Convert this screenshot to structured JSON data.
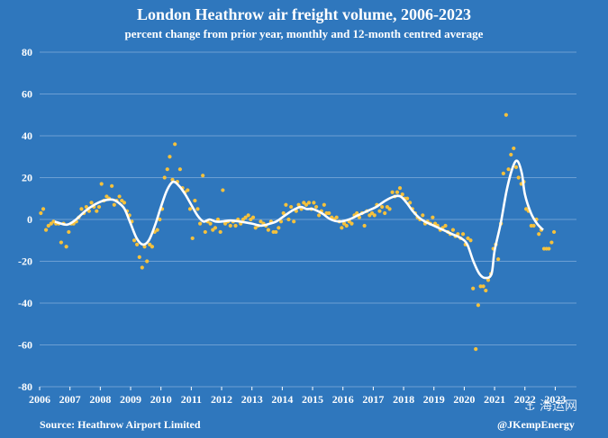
{
  "chart_data": {
    "type": "scatter",
    "title": "London Heathrow air freight volume, 2006-2023",
    "subtitle": "percent change from prior year, monthly and 12-month centred average",
    "xlabel": "",
    "ylabel": "",
    "xlim": [
      2006,
      2023.7
    ],
    "ylim": [
      -80,
      80
    ],
    "yticks": [
      "80",
      "60",
      "40",
      "20",
      "0",
      "-20",
      "-40",
      "-60",
      "-80"
    ],
    "xticks": [
      "2006",
      "2007",
      "2008",
      "2009",
      "2010",
      "2011",
      "2012",
      "2013",
      "2014",
      "2015",
      "2016",
      "2017",
      "2018",
      "2019",
      "2020",
      "2021",
      "2022",
      "2023"
    ],
    "grid": "horizontal",
    "colors": {
      "background": "#2f77bd",
      "points": "#f5c13c",
      "line": "#ffffff",
      "grid": "#6c9fd3"
    },
    "series": [
      {
        "type": "scatter",
        "values": [
          [
            2006.04,
            3
          ],
          [
            2006.12,
            5
          ],
          [
            2006.21,
            -5
          ],
          [
            2006.29,
            -3
          ],
          [
            2006.38,
            -2
          ],
          [
            2006.46,
            -1
          ],
          [
            2006.54,
            -2
          ],
          [
            2006.63,
            -2
          ],
          [
            2006.71,
            -11
          ],
          [
            2006.79,
            -2
          ],
          [
            2006.88,
            -13
          ],
          [
            2006.96,
            -6
          ],
          [
            2007.04,
            -2
          ],
          [
            2007.12,
            -2
          ],
          [
            2007.21,
            -1
          ],
          [
            2007.29,
            1
          ],
          [
            2007.38,
            5
          ],
          [
            2007.46,
            3
          ],
          [
            2007.54,
            6
          ],
          [
            2007.63,
            4
          ],
          [
            2007.71,
            8
          ],
          [
            2007.79,
            6
          ],
          [
            2007.88,
            4
          ],
          [
            2007.96,
            6
          ],
          [
            2008.04,
            17
          ],
          [
            2008.12,
            9
          ],
          [
            2008.21,
            11
          ],
          [
            2008.29,
            10
          ],
          [
            2008.38,
            16
          ],
          [
            2008.46,
            7
          ],
          [
            2008.54,
            9
          ],
          [
            2008.63,
            11
          ],
          [
            2008.71,
            9
          ],
          [
            2008.79,
            8
          ],
          [
            2008.88,
            4
          ],
          [
            2008.96,
            2
          ],
          [
            2009.04,
            -1
          ],
          [
            2009.12,
            -10
          ],
          [
            2009.21,
            -12
          ],
          [
            2009.29,
            -18
          ],
          [
            2009.38,
            -23
          ],
          [
            2009.46,
            -13
          ],
          [
            2009.54,
            -20
          ],
          [
            2009.63,
            -12
          ],
          [
            2009.71,
            -13
          ],
          [
            2009.79,
            -6
          ],
          [
            2009.88,
            -5
          ],
          [
            2009.96,
            0
          ],
          [
            2010.04,
            5
          ],
          [
            2010.12,
            20
          ],
          [
            2010.21,
            24
          ],
          [
            2010.29,
            30
          ],
          [
            2010.38,
            19
          ],
          [
            2010.46,
            36
          ],
          [
            2010.54,
            18
          ],
          [
            2010.63,
            24
          ],
          [
            2010.71,
            15
          ],
          [
            2010.79,
            13
          ],
          [
            2010.88,
            14
          ],
          [
            2010.96,
            5
          ],
          [
            2011.04,
            -9
          ],
          [
            2011.12,
            9
          ],
          [
            2011.21,
            5
          ],
          [
            2011.29,
            -2
          ],
          [
            2011.38,
            21
          ],
          [
            2011.46,
            -6
          ],
          [
            2011.54,
            -1
          ],
          [
            2011.63,
            -2
          ],
          [
            2011.71,
            -5
          ],
          [
            2011.79,
            -4
          ],
          [
            2011.88,
            0
          ],
          [
            2011.96,
            -6
          ],
          [
            2012.04,
            14
          ],
          [
            2012.12,
            -2
          ],
          [
            2012.21,
            -1
          ],
          [
            2012.29,
            -3
          ],
          [
            2012.38,
            -1
          ],
          [
            2012.46,
            -3
          ],
          [
            2012.54,
            0
          ],
          [
            2012.63,
            -2
          ],
          [
            2012.71,
            0
          ],
          [
            2012.79,
            1
          ],
          [
            2012.88,
            2
          ],
          [
            2012.96,
            0
          ],
          [
            2013.04,
            1
          ],
          [
            2013.12,
            -4
          ],
          [
            2013.21,
            -3
          ],
          [
            2013.29,
            -1
          ],
          [
            2013.38,
            -2
          ],
          [
            2013.46,
            -3
          ],
          [
            2013.54,
            -5
          ],
          [
            2013.63,
            -1
          ],
          [
            2013.71,
            -6
          ],
          [
            2013.79,
            -6
          ],
          [
            2013.88,
            -4
          ],
          [
            2013.96,
            -1
          ],
          [
            2014.04,
            3
          ],
          [
            2014.12,
            7
          ],
          [
            2014.21,
            0
          ],
          [
            2014.29,
            6
          ],
          [
            2014.38,
            -1
          ],
          [
            2014.46,
            4
          ],
          [
            2014.54,
            7
          ],
          [
            2014.63,
            5
          ],
          [
            2014.71,
            8
          ],
          [
            2014.79,
            7
          ],
          [
            2014.88,
            8
          ],
          [
            2014.96,
            5
          ],
          [
            2015.04,
            8
          ],
          [
            2015.12,
            6
          ],
          [
            2015.21,
            2
          ],
          [
            2015.29,
            4
          ],
          [
            2015.38,
            7
          ],
          [
            2015.46,
            3
          ],
          [
            2015.54,
            3
          ],
          [
            2015.63,
            1
          ],
          [
            2015.71,
            0
          ],
          [
            2015.79,
            1
          ],
          [
            2015.88,
            -1
          ],
          [
            2015.96,
            -4
          ],
          [
            2016.04,
            -2
          ],
          [
            2016.12,
            -3
          ],
          [
            2016.21,
            -1
          ],
          [
            2016.29,
            -2
          ],
          [
            2016.38,
            2
          ],
          [
            2016.46,
            3
          ],
          [
            2016.54,
            1
          ],
          [
            2016.63,
            3
          ],
          [
            2016.71,
            -3
          ],
          [
            2016.79,
            4
          ],
          [
            2016.88,
            2
          ],
          [
            2016.96,
            3
          ],
          [
            2017.04,
            2
          ],
          [
            2017.12,
            7
          ],
          [
            2017.21,
            4
          ],
          [
            2017.29,
            6
          ],
          [
            2017.38,
            3
          ],
          [
            2017.46,
            6
          ],
          [
            2017.54,
            5
          ],
          [
            2017.63,
            13
          ],
          [
            2017.71,
            11
          ],
          [
            2017.79,
            13
          ],
          [
            2017.88,
            15
          ],
          [
            2017.96,
            12
          ],
          [
            2018.04,
            10
          ],
          [
            2018.12,
            10
          ],
          [
            2018.21,
            8
          ],
          [
            2018.29,
            5
          ],
          [
            2018.38,
            3
          ],
          [
            2018.46,
            1
          ],
          [
            2018.54,
            0
          ],
          [
            2018.63,
            2
          ],
          [
            2018.71,
            -2
          ],
          [
            2018.79,
            -1
          ],
          [
            2018.88,
            -2
          ],
          [
            2018.96,
            1
          ],
          [
            2019.04,
            -2
          ],
          [
            2019.12,
            -3
          ],
          [
            2019.21,
            -5
          ],
          [
            2019.29,
            -4
          ],
          [
            2019.38,
            -3
          ],
          [
            2019.46,
            -6
          ],
          [
            2019.54,
            -7
          ],
          [
            2019.63,
            -5
          ],
          [
            2019.71,
            -8
          ],
          [
            2019.79,
            -7
          ],
          [
            2019.88,
            -9
          ],
          [
            2019.96,
            -7
          ],
          [
            2020.04,
            -12
          ],
          [
            2020.12,
            -9
          ],
          [
            2020.21,
            -10
          ],
          [
            2020.29,
            -33
          ],
          [
            2020.38,
            -62
          ],
          [
            2020.46,
            -41
          ],
          [
            2020.54,
            -32
          ],
          [
            2020.63,
            -32
          ],
          [
            2020.71,
            -34
          ],
          [
            2020.79,
            -29
          ],
          [
            2020.88,
            -26
          ],
          [
            2020.96,
            -14
          ],
          [
            2021.04,
            -12
          ],
          [
            2021.12,
            -19
          ],
          [
            2021.21,
            -2
          ],
          [
            2021.29,
            22
          ],
          [
            2021.38,
            50
          ],
          [
            2021.46,
            24
          ],
          [
            2021.54,
            31
          ],
          [
            2021.63,
            34
          ],
          [
            2021.71,
            25
          ],
          [
            2021.79,
            20
          ],
          [
            2021.88,
            17
          ],
          [
            2021.96,
            18
          ],
          [
            2022.04,
            5
          ],
          [
            2022.12,
            4
          ],
          [
            2022.21,
            -3
          ],
          [
            2022.29,
            -3
          ],
          [
            2022.38,
            0
          ],
          [
            2022.46,
            -7
          ],
          [
            2022.54,
            -5
          ],
          [
            2022.63,
            -14
          ],
          [
            2022.71,
            -14
          ],
          [
            2022.79,
            -14
          ],
          [
            2022.88,
            -11
          ],
          [
            2022.96,
            -6
          ]
        ]
      },
      {
        "type": "line",
        "values": [
          [
            2006.5,
            -1
          ],
          [
            2006.9,
            -2.5
          ],
          [
            2007.2,
            0
          ],
          [
            2007.5,
            4
          ],
          [
            2007.8,
            7
          ],
          [
            2008.1,
            9
          ],
          [
            2008.4,
            9.5
          ],
          [
            2008.6,
            8
          ],
          [
            2008.8,
            5
          ],
          [
            2009.0,
            -2
          ],
          [
            2009.2,
            -9
          ],
          [
            2009.4,
            -12
          ],
          [
            2009.6,
            -10
          ],
          [
            2009.8,
            -3
          ],
          [
            2010.0,
            6
          ],
          [
            2010.2,
            14
          ],
          [
            2010.4,
            18
          ],
          [
            2010.6,
            16
          ],
          [
            2010.8,
            12
          ],
          [
            2011.0,
            7
          ],
          [
            2011.2,
            2
          ],
          [
            2011.4,
            -1
          ],
          [
            2011.6,
            0
          ],
          [
            2011.8,
            -1
          ],
          [
            2012.0,
            -1
          ],
          [
            2012.3,
            -0.5
          ],
          [
            2012.6,
            -1
          ],
          [
            2013.0,
            -2
          ],
          [
            2013.3,
            -3
          ],
          [
            2013.6,
            -2
          ],
          [
            2013.8,
            -1
          ],
          [
            2014.0,
            1
          ],
          [
            2014.3,
            4
          ],
          [
            2014.6,
            6
          ],
          [
            2014.8,
            5
          ],
          [
            2015.0,
            5
          ],
          [
            2015.3,
            3
          ],
          [
            2015.6,
            0
          ],
          [
            2015.9,
            -1
          ],
          [
            2016.2,
            0
          ],
          [
            2016.5,
            2
          ],
          [
            2016.8,
            4
          ],
          [
            2017.1,
            6
          ],
          [
            2017.4,
            9
          ],
          [
            2017.7,
            11
          ],
          [
            2017.9,
            11
          ],
          [
            2018.1,
            8
          ],
          [
            2018.3,
            4
          ],
          [
            2018.5,
            1
          ],
          [
            2018.7,
            -1
          ],
          [
            2019.0,
            -3
          ],
          [
            2019.3,
            -5
          ],
          [
            2019.6,
            -7
          ],
          [
            2019.9,
            -9
          ],
          [
            2020.1,
            -12
          ],
          [
            2020.3,
            -20
          ],
          [
            2020.5,
            -26
          ],
          [
            2020.7,
            -28
          ],
          [
            2020.9,
            -26
          ],
          [
            2021.0,
            -15
          ],
          [
            2021.2,
            -2
          ],
          [
            2021.4,
            14
          ],
          [
            2021.6,
            25
          ],
          [
            2021.75,
            28
          ],
          [
            2021.9,
            22
          ],
          [
            2022.0,
            12
          ],
          [
            2022.2,
            3
          ],
          [
            2022.4,
            -2
          ],
          [
            2022.6,
            -5
          ]
        ]
      }
    ]
  },
  "source": "Source: Heathrow Airport Limited",
  "credit": "@JKempEnergy",
  "watermark": "海运网"
}
